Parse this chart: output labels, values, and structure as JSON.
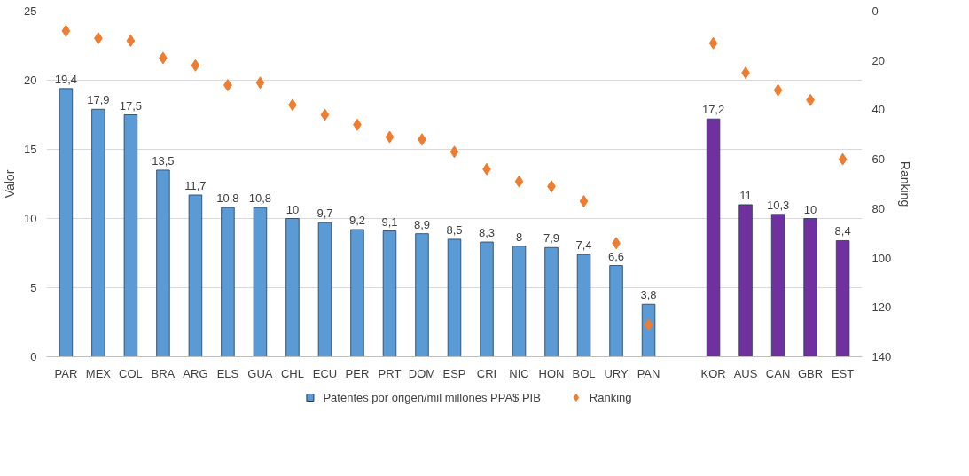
{
  "chart_data": {
    "type": "bar",
    "xlabel": null,
    "ylabel": "Valor",
    "y2label": "Ranking",
    "categories": [
      "PAR",
      "MEX",
      "COL",
      "BRA",
      "ARG",
      "ELS",
      "GUA",
      "CHL",
      "ECU",
      "PER",
      "PRT",
      "DOM",
      "ESP",
      "CRI",
      "NIC",
      "HON",
      "BOL",
      "URY",
      "PAN",
      null,
      "KOR",
      "AUS",
      "CAN",
      "GBR",
      "EST"
    ],
    "series": [
      {
        "name": "Patentes por origen/mil millones PPA$ PIB",
        "colors": [
          "#5b9bd5",
          "#5b9bd5",
          "#5b9bd5",
          "#5b9bd5",
          "#5b9bd5",
          "#5b9bd5",
          "#5b9bd5",
          "#5b9bd5",
          "#5b9bd5",
          "#5b9bd5",
          "#5b9bd5",
          "#5b9bd5",
          "#5b9bd5",
          "#5b9bd5",
          "#5b9bd5",
          "#5b9bd5",
          "#5b9bd5",
          "#5b9bd5",
          "#5b9bd5",
          "#7030a0",
          "#7030a0",
          "#7030a0",
          "#7030a0",
          "#7030a0",
          "#7030a0"
        ],
        "values": [
          19.4,
          17.9,
          17.5,
          13.5,
          11.7,
          10.8,
          10.8,
          10,
          9.7,
          9.2,
          9.1,
          8.9,
          8.5,
          8.3,
          8,
          7.9,
          7.4,
          6.6,
          3.8,
          null,
          17.2,
          11,
          10.3,
          10,
          8.4
        ],
        "value_labels": [
          "19,4",
          "17,9",
          "17,5",
          "13,5",
          "11,7",
          "10,8",
          "10,8",
          "10",
          "9,7",
          "9,2",
          "9,1",
          "8,9",
          "8,5",
          "8,3",
          "8",
          "7,9",
          "7,4",
          "6,6",
          "3,8",
          null,
          "17,2",
          "11",
          "10,3",
          "10",
          "8,4"
        ]
      },
      {
        "name": "Ranking",
        "type": "scatter",
        "axis": "y2",
        "color": "#ed7d31",
        "marker": "diamond",
        "values": [
          8,
          11,
          12,
          19,
          22,
          30,
          29,
          38,
          42,
          46,
          51,
          52,
          57,
          64,
          69,
          71,
          77,
          94,
          127,
          null,
          13,
          25,
          32,
          36,
          60
        ]
      }
    ],
    "ylim": [
      0,
      25
    ],
    "yticks": [
      0,
      5,
      10,
      15,
      20,
      25
    ],
    "y2lim": [
      140,
      0
    ],
    "y2ticks": [
      0,
      20,
      40,
      60,
      80,
      100,
      120,
      140
    ],
    "grid": "y",
    "legend": "bottom"
  }
}
